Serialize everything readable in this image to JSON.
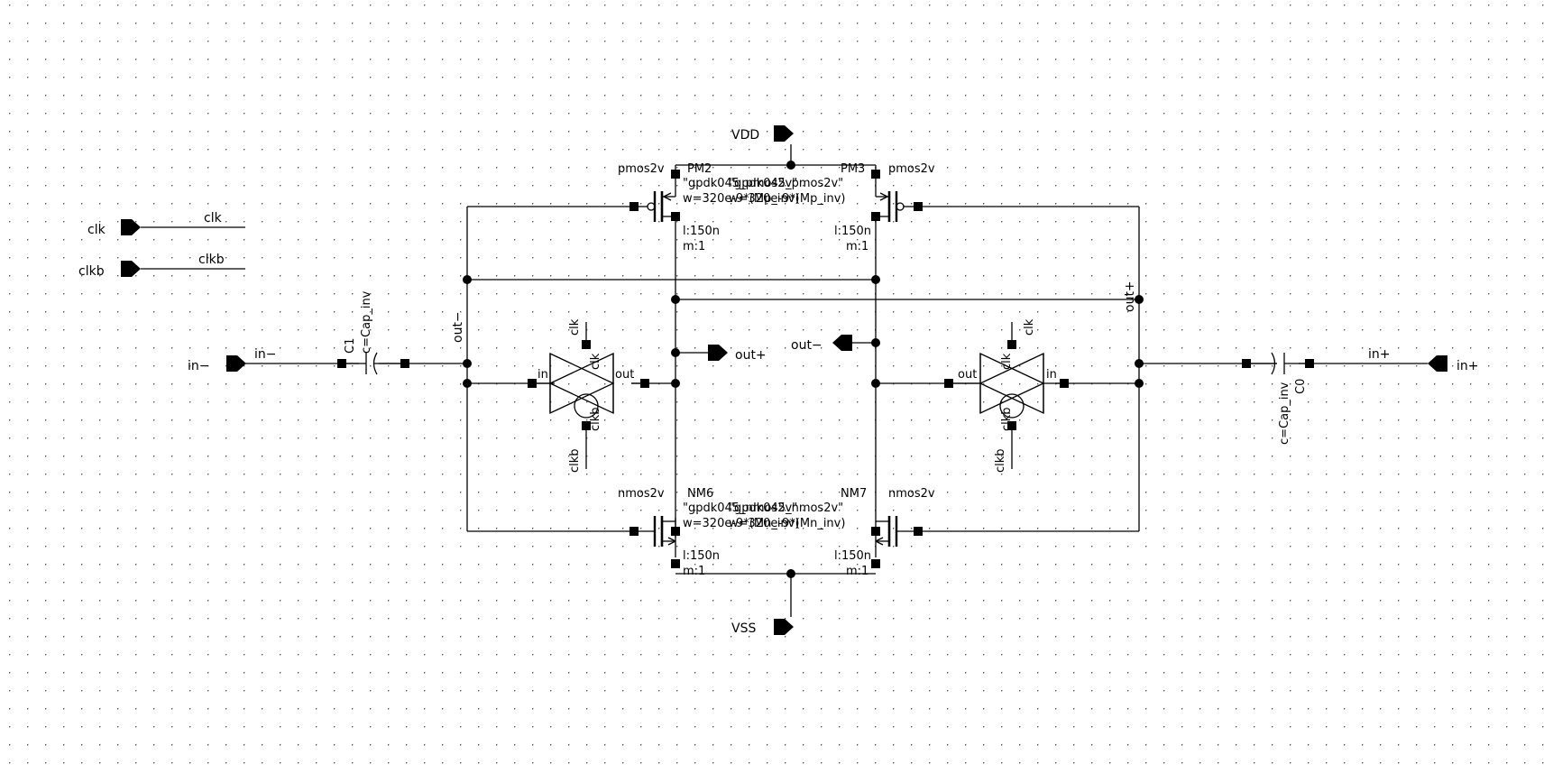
{
  "pins": {
    "clk": "clk",
    "clkb": "clkb",
    "in_minus": "in−",
    "in_plus": "in+",
    "vdd": "VDD",
    "vss": "VSS",
    "out_plus": "out+",
    "out_minus": "out−"
  },
  "nets": {
    "clk": "clk",
    "clkb": "clkb",
    "in_minus": "in−",
    "in_plus": "in+",
    "out_minus": "out−",
    "out_plus": "out+"
  },
  "capacitors": {
    "c1": {
      "name": "C1",
      "value": "c=Cap_inv"
    },
    "c0": {
      "name": "C0",
      "value": "c=Cap_inv"
    }
  },
  "transistors": {
    "pm2": {
      "type": "pmos2v",
      "name": "PM2",
      "length": "l:150n",
      "mult": "m:1"
    },
    "pm3": {
      "type": "pmos2v",
      "name": "PM3",
      "length": "l:150n",
      "mult": "m:1"
    },
    "nm6": {
      "type": "nmos2v",
      "name": "NM6",
      "length": "l:150n",
      "mult": "m:1"
    },
    "nm7": {
      "type": "nmos2v",
      "name": "NM7",
      "length": "l:150n",
      "mult": "m:1"
    },
    "pmos_model_a": "\"gpdk045_pmos2v\"",
    "pmos_model_b": "\"gpdk045_pmos2v\"",
    "pmos_width_a": "w=320e-9*(Mp_inv)",
    "pmos_width_b": "w=320e-9*(Mp_inv)",
    "nmos_model_a": "\"gpdk045_nmos2v\"",
    "nmos_model_b": "\"gpdk045_nmos2v\"",
    "nmos_width_a": "w=320e-9*(Mn_inv)",
    "nmos_width_b": "w=320e-9*(Mn_inv)"
  },
  "tgates": {
    "left": {
      "in": "in",
      "out": "out",
      "clk_top": "clk",
      "clk_inner": "clk",
      "clkb_inner": "clkb",
      "clkb_bottom": "clkb"
    },
    "right": {
      "in": "in",
      "out": "out",
      "clk_top": "clk",
      "clk_inner": "clk",
      "clkb_inner": "clkb",
      "clkb_bottom": "clkb"
    }
  }
}
